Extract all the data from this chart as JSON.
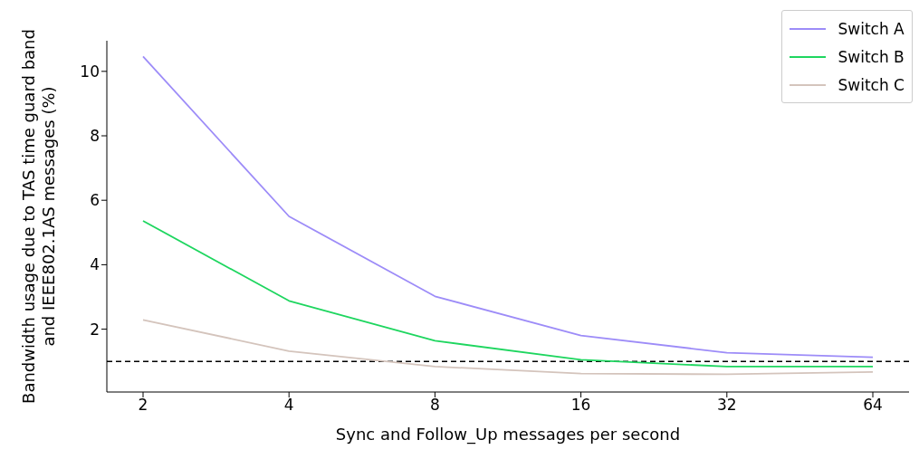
{
  "chart_data": {
    "type": "line",
    "xlabel": "Sync and Follow_Up messages per second",
    "ylabel": "Bandwidth usage due to TAS time guard band\nand IEEE802.1AS messages (%)",
    "categories": [
      "2",
      "4",
      "8",
      "16",
      "32",
      "64"
    ],
    "series": [
      {
        "name": "Switch A",
        "color": "#9d8cf8",
        "values": [
          10.46,
          5.5,
          3.02,
          1.8,
          1.27,
          1.13
        ]
      },
      {
        "name": "Switch B",
        "color": "#1ed65f",
        "values": [
          5.36,
          2.88,
          1.64,
          1.05,
          0.84,
          0.84
        ]
      },
      {
        "name": "Switch C",
        "color": "#d4c4bc",
        "values": [
          2.29,
          1.32,
          0.84,
          0.62,
          0.6,
          0.67
        ]
      }
    ],
    "ylim": [
      0.05,
      10.95
    ],
    "yticks": [
      2,
      4,
      6,
      8,
      10
    ],
    "grid": false,
    "legend": "top right",
    "marker": "none",
    "line_style": "solid",
    "ref_lines": [
      {
        "axis": "y",
        "value": 1,
        "color": "#000000",
        "line_style": "dashed"
      }
    ]
  }
}
